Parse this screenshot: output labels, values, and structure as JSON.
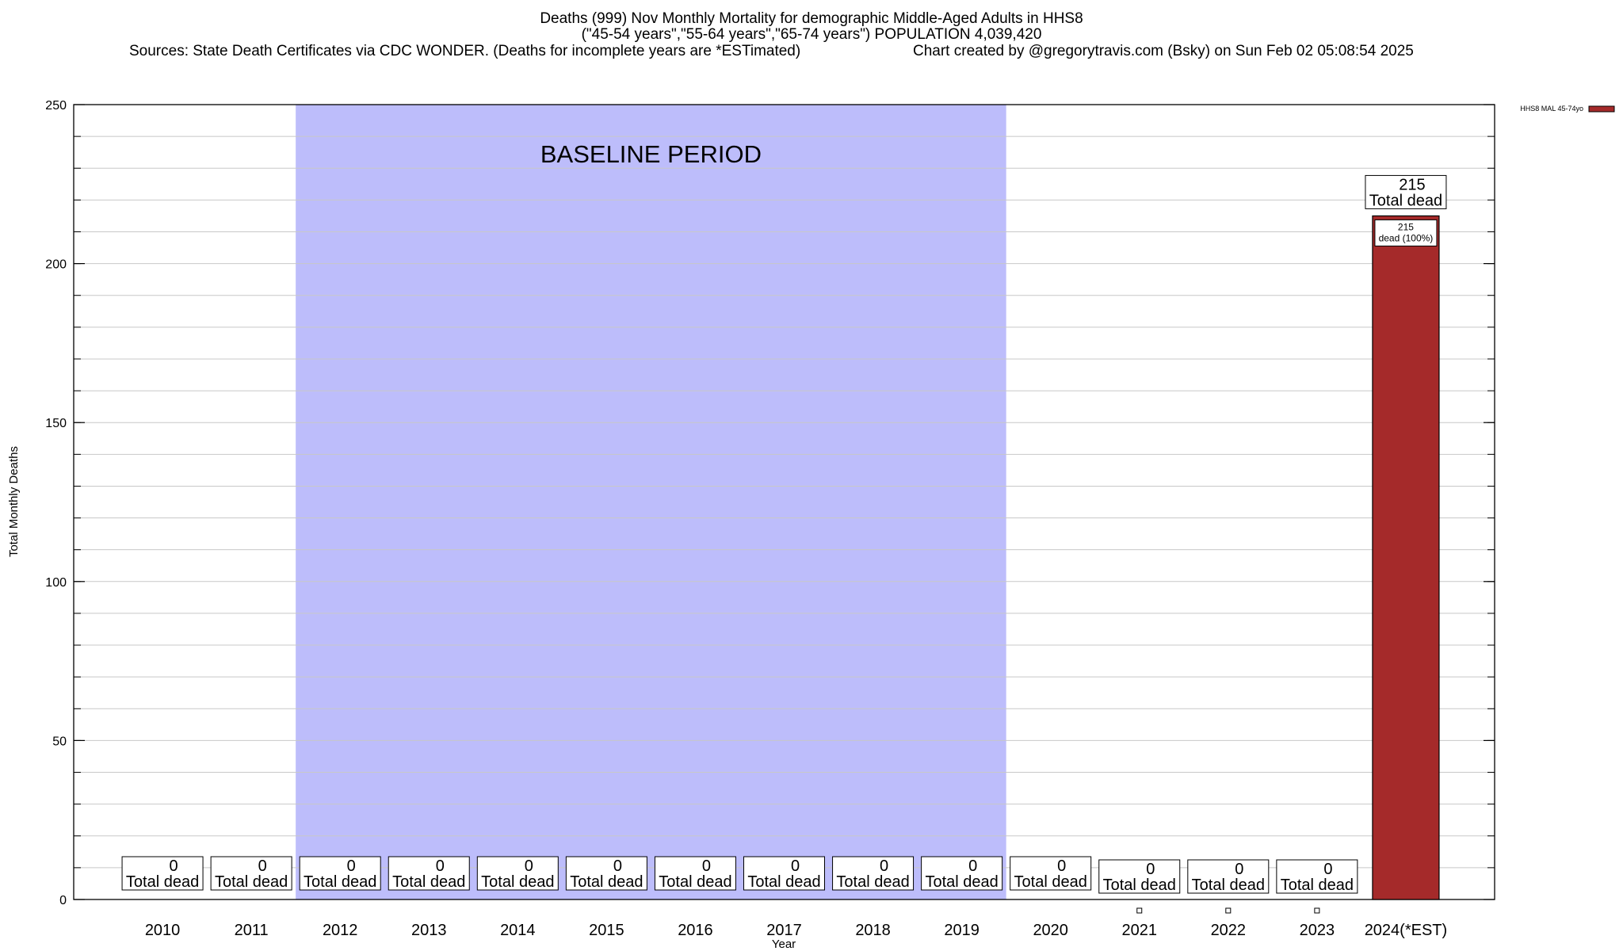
{
  "chart_data": {
    "type": "bar",
    "title_line1": "Deaths (999) Nov Monthly Mortality for demographic Middle-Aged Adults in HHS8",
    "title_line2": "(\"45-54 years\",\"55-64 years\",\"65-74 years\") POPULATION 4,039,420",
    "sources": "Sources: State Death Certificates via CDC WONDER. (Deaths for incomplete years are *ESTimated)",
    "credit": "Chart created by @gregorytravis.com (Bsky) on Sun Feb 02 05:08:54 2025",
    "xlabel": "Year",
    "ylabel": "Total Monthly Deaths",
    "ylim": [
      0,
      250
    ],
    "yticks": [
      0,
      50,
      100,
      150,
      200,
      250
    ],
    "grid": true,
    "legend_position": "top-right",
    "series": [
      {
        "name": "HHS8 MAL 45-74yo",
        "color": "#a52a2a"
      }
    ],
    "categories": [
      "2010",
      "2011",
      "2012",
      "2013",
      "2014",
      "2015",
      "2016",
      "2017",
      "2018",
      "2019",
      "2020",
      "2021",
      "2022",
      "2023",
      "2024(*EST)"
    ],
    "values": [
      0,
      0,
      0,
      0,
      0,
      0,
      0,
      0,
      0,
      0,
      0,
      0,
      0,
      0,
      215
    ],
    "total_label_suffix": "Total dead",
    "segment_label_suffix": "dead (100%)",
    "baseline": {
      "label": "BASELINE PERIOD",
      "start": "2012",
      "end": "2019",
      "color": "#bdbdfb"
    }
  }
}
